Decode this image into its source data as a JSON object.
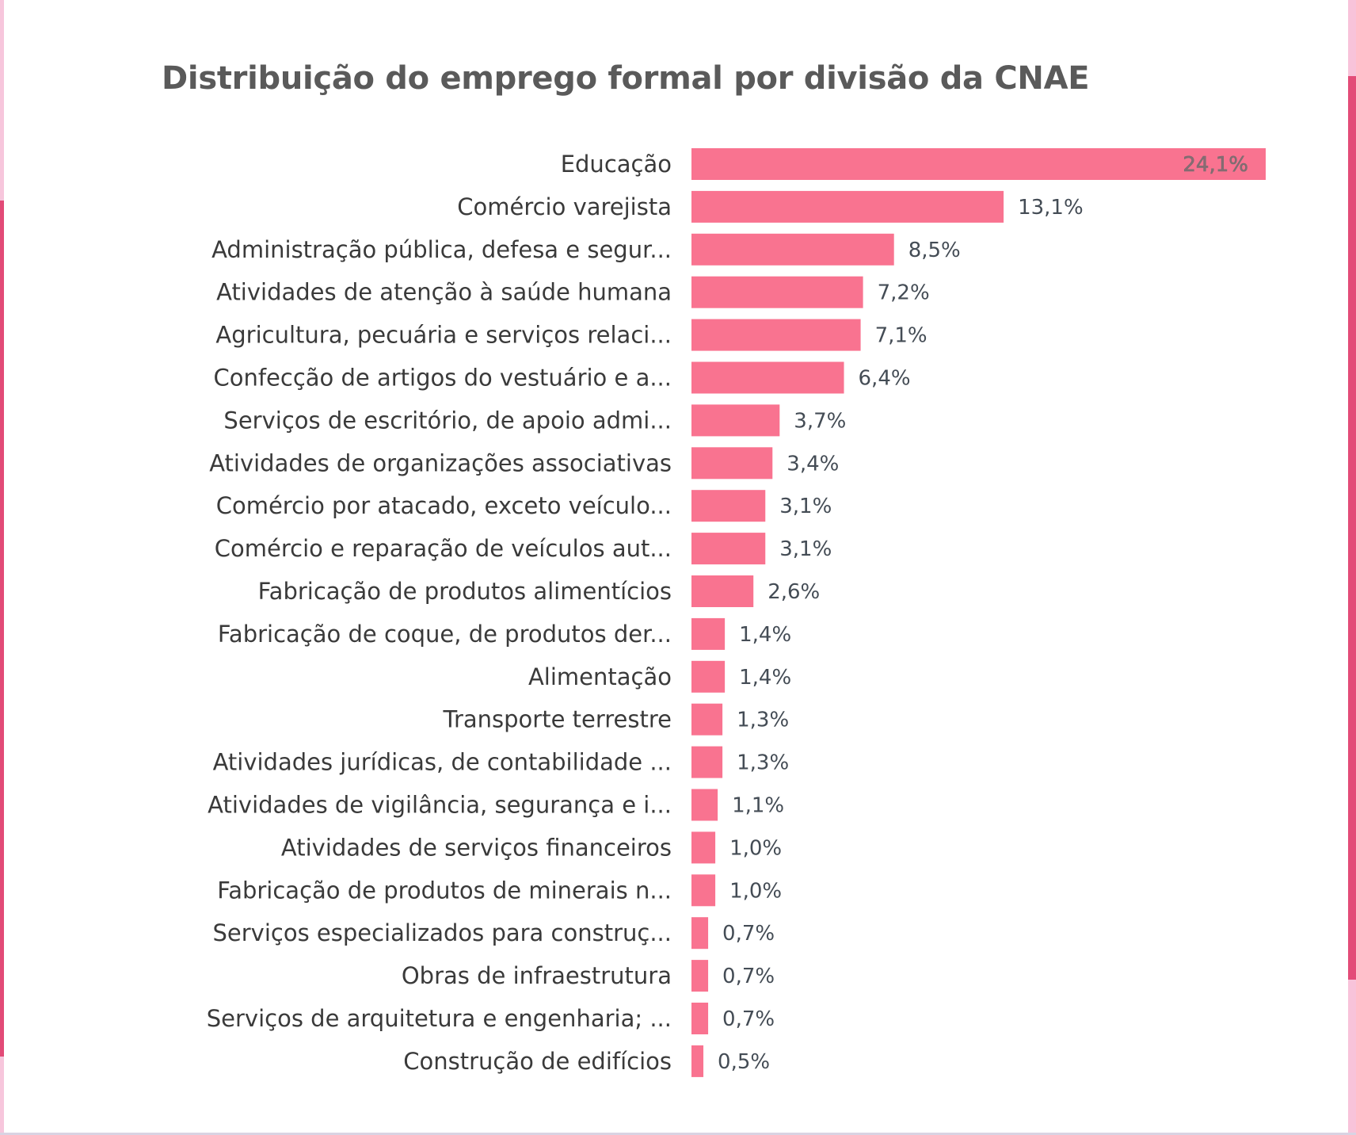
{
  "frame": {
    "accent_color": "#e34c78",
    "accent_light_color": "#f8c3da"
  },
  "chart_data": {
    "type": "bar",
    "orientation": "horizontal",
    "title": "Distribuição do emprego formal por divisão da CNAE",
    "xlabel": "",
    "ylabel": "",
    "xlim": [
      0,
      24.1
    ],
    "grid": false,
    "legend": "none",
    "bar_color": "#f97390",
    "value_suffix": "%",
    "categories": [
      "Educação",
      "Comércio varejista",
      "Administração pública, defesa e segur...",
      "Atividades de atenção à saúde humana",
      "Agricultura, pecuária e serviços relaci...",
      "Confecção de artigos do vestuário e a...",
      "Serviços de escritório, de apoio admi...",
      "Atividades de organizações associativas",
      "Comércio por atacado, exceto veículo...",
      "Comércio e reparação de veículos aut...",
      "Fabricação de produtos alimentícios",
      "Fabricação de coque, de produtos der...",
      "Alimentação",
      "Transporte terrestre",
      "Atividades jurídicas, de contabilidade ...",
      "Atividades de vigilância, segurança e i...",
      "Atividades de serviços financeiros",
      "Fabricação de produtos de minerais n...",
      "Serviços especializados para construç...",
      "Obras de infraestrutura",
      "Serviços de arquitetura e engenharia; ...",
      "Construção de edifícios"
    ],
    "values": [
      24.1,
      13.1,
      8.5,
      7.2,
      7.1,
      6.4,
      3.7,
      3.4,
      3.1,
      3.1,
      2.6,
      1.4,
      1.4,
      1.3,
      1.3,
      1.1,
      1.0,
      1.0,
      0.7,
      0.7,
      0.7,
      0.5
    ],
    "data_labels": [
      "24,1%",
      "13,1%",
      "8,5%",
      "7,2%",
      "7,1%",
      "6,4%",
      "3,7%",
      "3,4%",
      "3,1%",
      "3,1%",
      "2,6%",
      "1,4%",
      "1,4%",
      "1,3%",
      "1,3%",
      "1,1%",
      "1,0%",
      "1,0%",
      "0,7%",
      "0,7%",
      "0,7%",
      "0,5%"
    ]
  }
}
